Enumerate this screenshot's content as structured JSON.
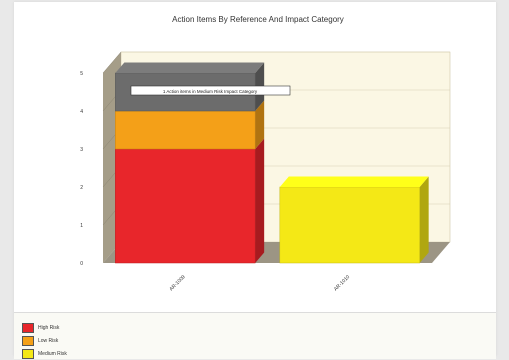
{
  "chart_data": {
    "type": "bar",
    "stacked": true,
    "three_d": true,
    "title": "Action Items By Reference And Impact Category",
    "categories": [
      "AR-1009",
      "AR-1010"
    ],
    "series": [
      {
        "name": "High Risk",
        "values": [
          3,
          0
        ],
        "color": "#e8262b"
      },
      {
        "name": "Low Risk",
        "values": [
          1,
          0
        ],
        "color": "#f4a018"
      },
      {
        "name": "Medium Risk",
        "values": [
          0,
          2
        ],
        "color": "#f4e816"
      },
      {
        "name": "",
        "values": [
          1,
          0
        ],
        "color": "#6c6c6c"
      }
    ],
    "ylim": [
      0,
      5
    ],
    "yticks": [
      0,
      1,
      2,
      3,
      4,
      5
    ],
    "grid": true,
    "legend_position": "bottom-left",
    "tooltip": "1 Action items in Medium Risk Impact Category"
  }
}
